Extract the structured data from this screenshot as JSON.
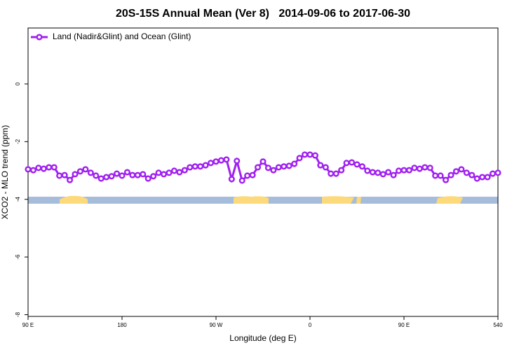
{
  "chart_data": {
    "type": "line",
    "title": "20S-15S Annual Mean (Ver 8)   2014-09-06 to 2017-06-30",
    "xlabel": "Longitude (deg E)",
    "ylabel": "XCO2 - MLO trend (ppm)",
    "legend_position": "top-left",
    "x": [
      90,
      95,
      100,
      105,
      110,
      115,
      120,
      125,
      130,
      135,
      140,
      145,
      150,
      155,
      160,
      165,
      170,
      175,
      180,
      185,
      190,
      195,
      200,
      205,
      210,
      215,
      220,
      225,
      230,
      235,
      240,
      245,
      250,
      255,
      260,
      265,
      270,
      275,
      280,
      285,
      290,
      295,
      300,
      305,
      310,
      315,
      320,
      325,
      330,
      335,
      340,
      345,
      350,
      355,
      360,
      365,
      370,
      375,
      380,
      385,
      390,
      395,
      400,
      405,
      410,
      415,
      420,
      425,
      430,
      435,
      440,
      445,
      450,
      455,
      460,
      465,
      470,
      475,
      480,
      485,
      490,
      495,
      500,
      505,
      510,
      515,
      520,
      525,
      530,
      535,
      540
    ],
    "series": [
      {
        "name": "Land (Nadir&Glint) and Ocean (Glint)",
        "color": "#a020f0",
        "values": [
          -2.96,
          -2.99,
          -2.91,
          -2.94,
          -2.89,
          -2.89,
          -3.18,
          -3.16,
          -3.33,
          -3.13,
          -3.03,
          -2.96,
          -3.08,
          -3.18,
          -3.28,
          -3.23,
          -3.2,
          -3.11,
          -3.18,
          -3.06,
          -3.16,
          -3.16,
          -3.13,
          -3.28,
          -3.2,
          -3.08,
          -3.13,
          -3.08,
          -3.01,
          -3.06,
          -2.99,
          -2.89,
          -2.86,
          -2.86,
          -2.82,
          -2.74,
          -2.69,
          -2.65,
          -2.62,
          -3.3,
          -2.67,
          -3.35,
          -3.18,
          -3.16,
          -2.89,
          -2.69,
          -2.91,
          -2.99,
          -2.89,
          -2.86,
          -2.84,
          -2.77,
          -2.57,
          -2.45,
          -2.45,
          -2.48,
          -2.82,
          -2.89,
          -3.11,
          -3.11,
          -2.99,
          -2.74,
          -2.72,
          -2.79,
          -2.86,
          -3.01,
          -3.06,
          -3.08,
          -3.13,
          -3.06,
          -3.16,
          -3.01,
          -2.99,
          -2.99,
          -2.91,
          -2.94,
          -2.89,
          -2.91,
          -3.18,
          -3.18,
          -3.33,
          -3.16,
          -3.03,
          -2.96,
          -3.08,
          -3.16,
          -3.28,
          -3.23,
          -3.23,
          -3.11,
          -3.08
        ]
      }
    ],
    "xlim": [
      90,
      540
    ],
    "xticks": [
      {
        "value": 90,
        "label": "90 E"
      },
      180,
      {
        "value": 270,
        "label": "90 W"
      },
      {
        "value": 360,
        "label": "0"
      },
      {
        "value": 450,
        "label": "90 E"
      },
      540
    ],
    "ylim": [
      -8.06,
      1.94
    ],
    "yticks": [
      0,
      -2,
      -4,
      -6,
      -8
    ]
  }
}
